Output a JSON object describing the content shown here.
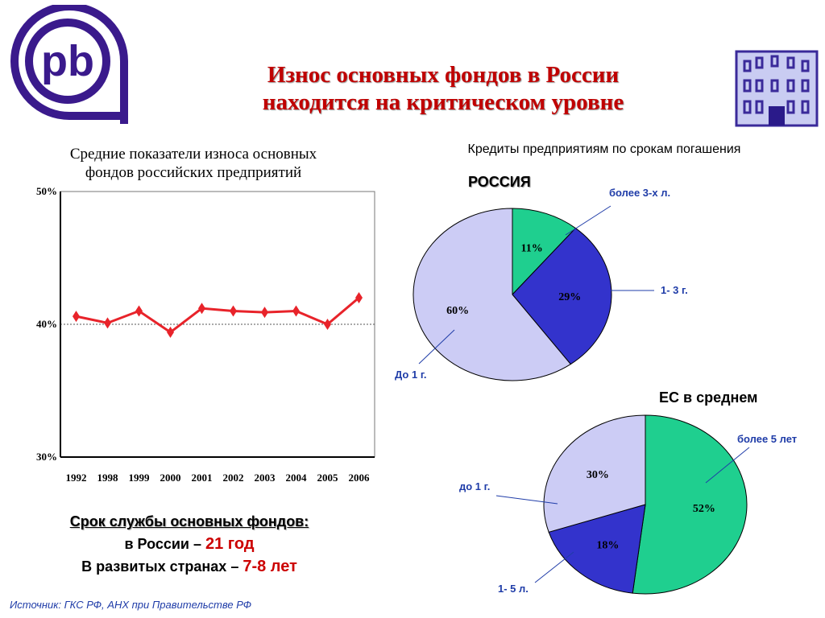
{
  "header": {
    "title_line1": "Износ основных фондов в России",
    "title_line2": "находится на критическом уровне"
  },
  "colors": {
    "title": "#c00000",
    "line": "#e8232a",
    "slice_green": "#1fcf8f",
    "slice_blue": "#3333cc",
    "slice_lavender": "#ccccf5",
    "logo": "#3a1a8c",
    "label_blue": "#1f3ca8"
  },
  "icons": {
    "left_logo": "pb-logo-icon",
    "right_logo": "building-icon"
  },
  "chart_data": [
    {
      "type": "line",
      "title_line1": "Средние показатели износа основных",
      "title_line2": "фондов российских предприятий",
      "categories": [
        "1992",
        "1998",
        "1999",
        "2000",
        "2001",
        "2002",
        "2003",
        "2004",
        "2005",
        "2006"
      ],
      "series": [
        {
          "values": [
            40.6,
            40.1,
            41.0,
            39.4,
            41.2,
            41.0,
            40.9,
            41.0,
            40.0,
            42.0
          ]
        }
      ],
      "y_ticks": [
        "50%",
        "40%",
        "30%"
      ],
      "ylim": [
        30,
        50
      ],
      "grid": "dotted line at 40%"
    },
    {
      "type": "pie",
      "heading": "Кредиты предприятиям по срокам погашения",
      "title": "РОССИЯ",
      "slices": [
        {
          "label": "более 3-х л.",
          "value": 11,
          "pct_label": "11%",
          "color": "#1fcf8f"
        },
        {
          "label": "1- 3 г.",
          "value": 29,
          "pct_label": "29%",
          "color": "#3333cc"
        },
        {
          "label": "До 1 г.",
          "value": 60,
          "pct_label": "60%",
          "color": "#ccccf5"
        }
      ]
    },
    {
      "type": "pie",
      "title": "ЕС в среднем",
      "slices": [
        {
          "label": "более 5 лет",
          "value": 52,
          "pct_label": "52%",
          "color": "#1fcf8f"
        },
        {
          "label": "1- 5 л.",
          "value": 18,
          "pct_label": "18%",
          "color": "#3333cc"
        },
        {
          "label": "до 1 г.",
          "value": 30,
          "pct_label": "30%",
          "color": "#ccccf5"
        }
      ]
    }
  ],
  "service_life": {
    "line1": "Срок службы основных фондов:",
    "line2_prefix": "в России – ",
    "line2_value": "21 год",
    "line3_prefix": "В развитых странах – ",
    "line3_value": "7-8 лет"
  },
  "footer": {
    "source": "Источник: ГКС РФ, АНХ при Правительстве РФ"
  }
}
